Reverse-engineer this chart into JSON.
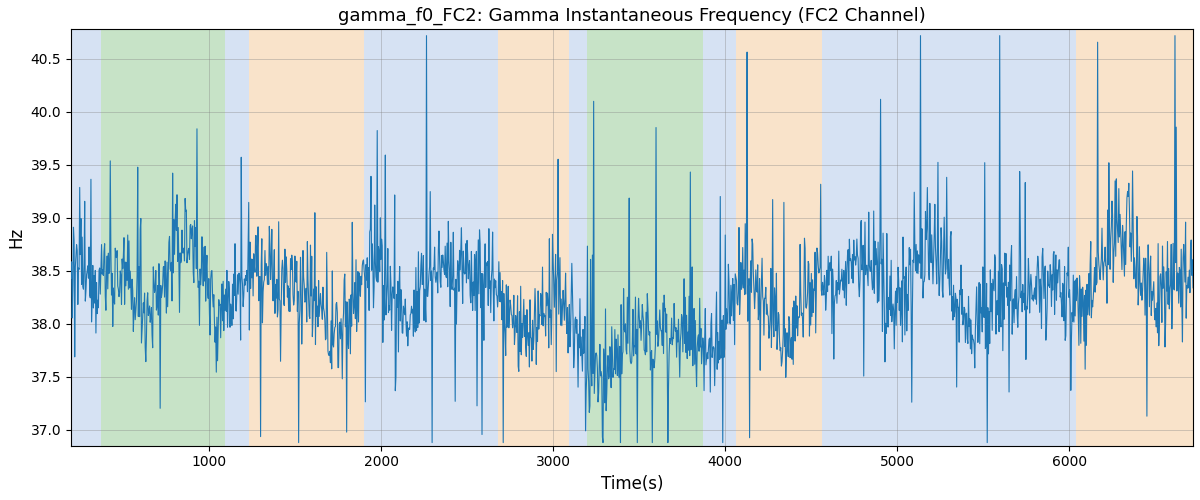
{
  "title": "gamma_f0_FC2: Gamma Instantaneous Frequency (FC2 Channel)",
  "xlabel": "Time(s)",
  "ylabel": "Hz",
  "xlim": [
    195,
    6720
  ],
  "ylim": [
    36.85,
    40.78
  ],
  "line_color": "#1f77b4",
  "line_width": 0.8,
  "bg_regions": [
    {
      "xmin": 195,
      "xmax": 370,
      "color": "#aec6e8",
      "alpha": 0.5
    },
    {
      "xmin": 370,
      "xmax": 1090,
      "color": "#90c990",
      "alpha": 0.5
    },
    {
      "xmin": 1090,
      "xmax": 1230,
      "color": "#aec6e8",
      "alpha": 0.5
    },
    {
      "xmin": 1230,
      "xmax": 1900,
      "color": "#f5c896",
      "alpha": 0.5
    },
    {
      "xmin": 1900,
      "xmax": 2680,
      "color": "#aec6e8",
      "alpha": 0.5
    },
    {
      "xmin": 2680,
      "xmax": 3090,
      "color": "#f5c896",
      "alpha": 0.5
    },
    {
      "xmin": 3090,
      "xmax": 3195,
      "color": "#aec6e8",
      "alpha": 0.5
    },
    {
      "xmin": 3195,
      "xmax": 3870,
      "color": "#90c990",
      "alpha": 0.5
    },
    {
      "xmin": 3870,
      "xmax": 4060,
      "color": "#aec6e8",
      "alpha": 0.5
    },
    {
      "xmin": 4060,
      "xmax": 4560,
      "color": "#f5c896",
      "alpha": 0.5
    },
    {
      "xmin": 4560,
      "xmax": 4820,
      "color": "#aec6e8",
      "alpha": 0.5
    },
    {
      "xmin": 4820,
      "xmax": 5620,
      "color": "#aec6e8",
      "alpha": 0.5
    },
    {
      "xmin": 5620,
      "xmax": 6040,
      "color": "#aec6e8",
      "alpha": 0.5
    },
    {
      "xmin": 6040,
      "xmax": 6720,
      "color": "#f5c896",
      "alpha": 0.5
    }
  ],
  "xticks": [
    1000,
    2000,
    3000,
    4000,
    5000,
    6000
  ],
  "yticks": [
    37.0,
    37.5,
    38.0,
    38.5,
    39.0,
    39.5,
    40.0,
    40.5
  ],
  "figsize": [
    12.0,
    5.0
  ],
  "dpi": 100
}
